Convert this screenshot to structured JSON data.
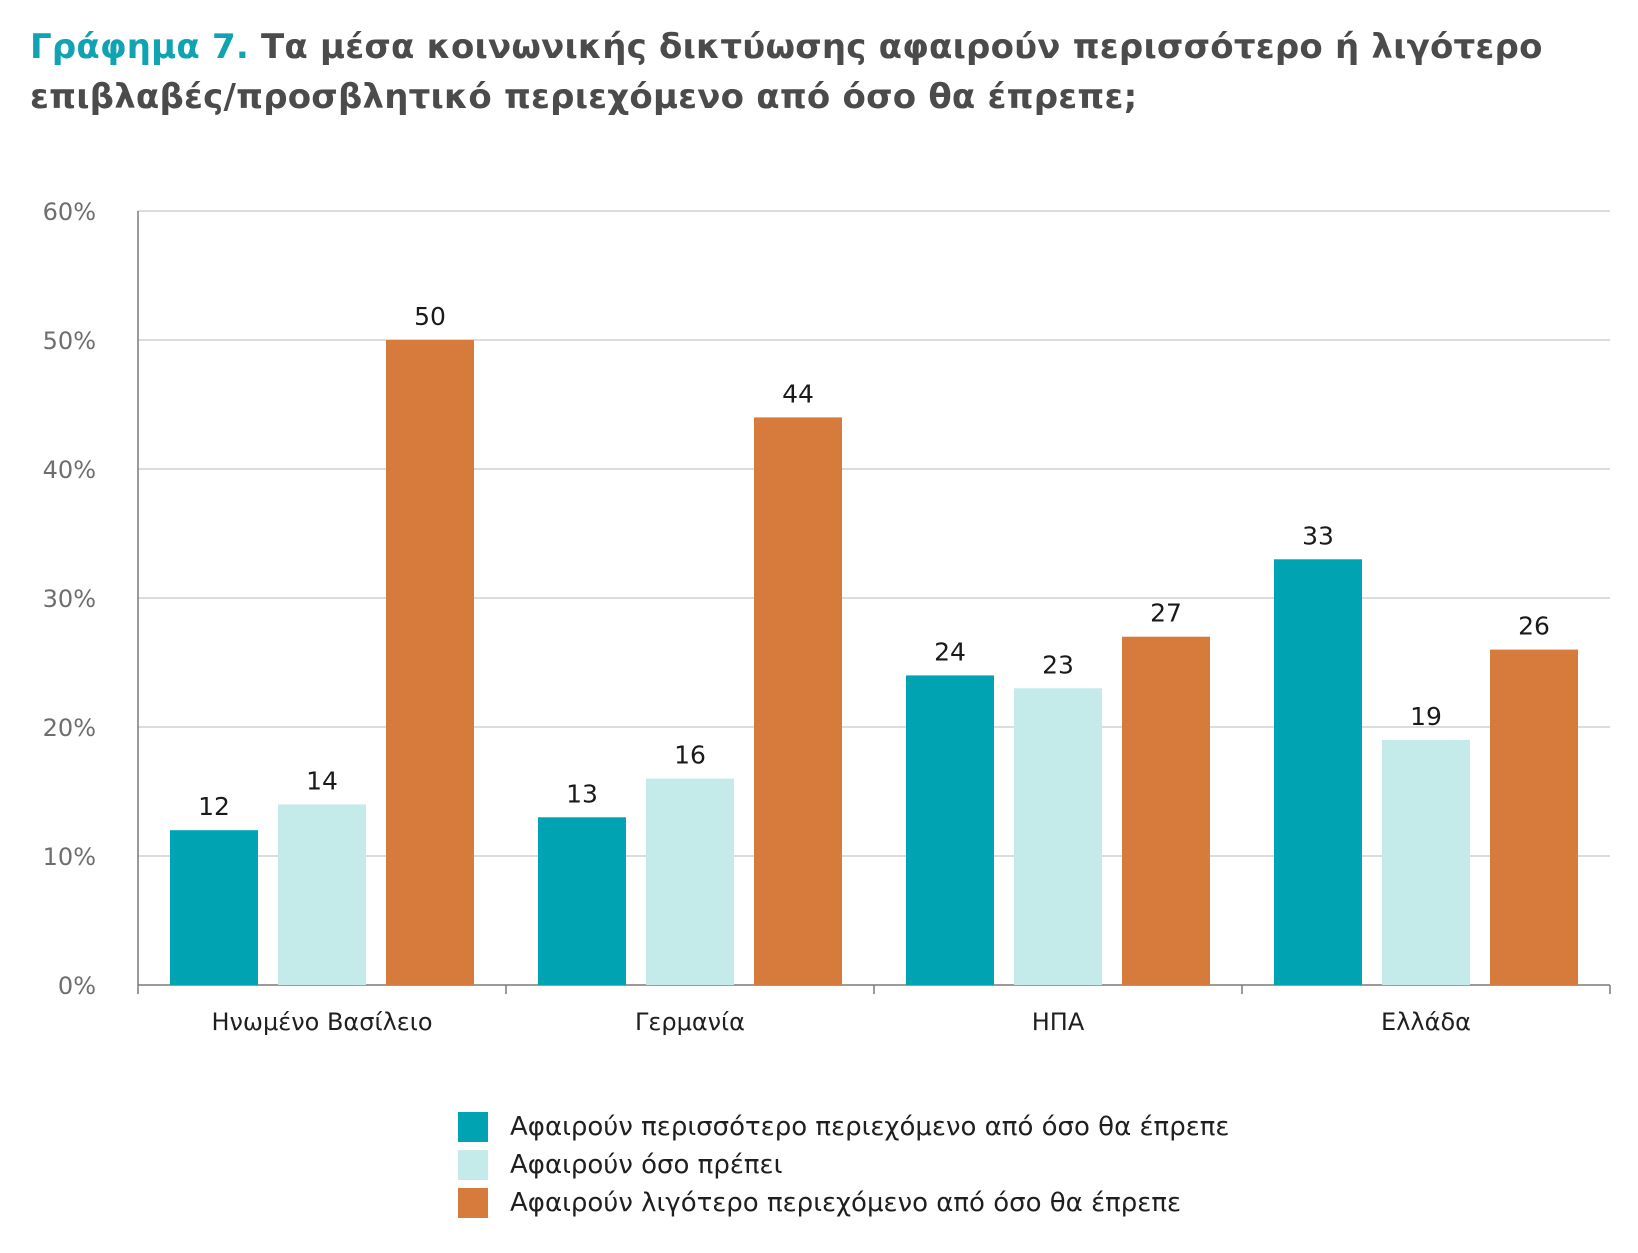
{
  "title": {
    "prefix": "Γράφημα 7.",
    "text": "Τα μέσα κοινωνικής δικτύωσης αφαιρούν περισσότερο ή λιγότερο επιβλαβές/προσβλητικό περιεχόμενο από όσο θα έπρεπε;"
  },
  "chart_data": {
    "type": "bar",
    "title": "Γράφημα 7. Τα μέσα κοινωνικής δικτύωσης αφαιρούν περισσότερο ή λιγότερο επιβλαβές/προσβλητικό περιεχόμενο από όσο θα έπρεπε;",
    "xlabel": "",
    "ylabel": "",
    "ylim": [
      0,
      60
    ],
    "yticks": [
      0,
      10,
      20,
      30,
      40,
      50,
      60
    ],
    "ytick_labels": [
      "0%",
      "10%",
      "20%",
      "30%",
      "40%",
      "50%",
      "60%"
    ],
    "grid": true,
    "legend_position": "bottom",
    "categories": [
      "Ηνωμένο Βασίλειο",
      "Γερμανία",
      "ΗΠΑ",
      "Ελλάδα"
    ],
    "series": [
      {
        "name": "Αφαιρούν περισσότερο περιεχόμενο από όσο θα έπρεπε",
        "color": "#00a3b1",
        "values": [
          12,
          13,
          24,
          33
        ]
      },
      {
        "name": "Αφαιρούν όσο πρέπει",
        "color": "#c4eaea",
        "values": [
          14,
          16,
          23,
          19
        ]
      },
      {
        "name": "Αφαιρούν λιγότερο περιεχόμενο από όσο θα έπρεπε",
        "color": "#d67b3c",
        "values": [
          50,
          44,
          27,
          26
        ]
      }
    ]
  }
}
